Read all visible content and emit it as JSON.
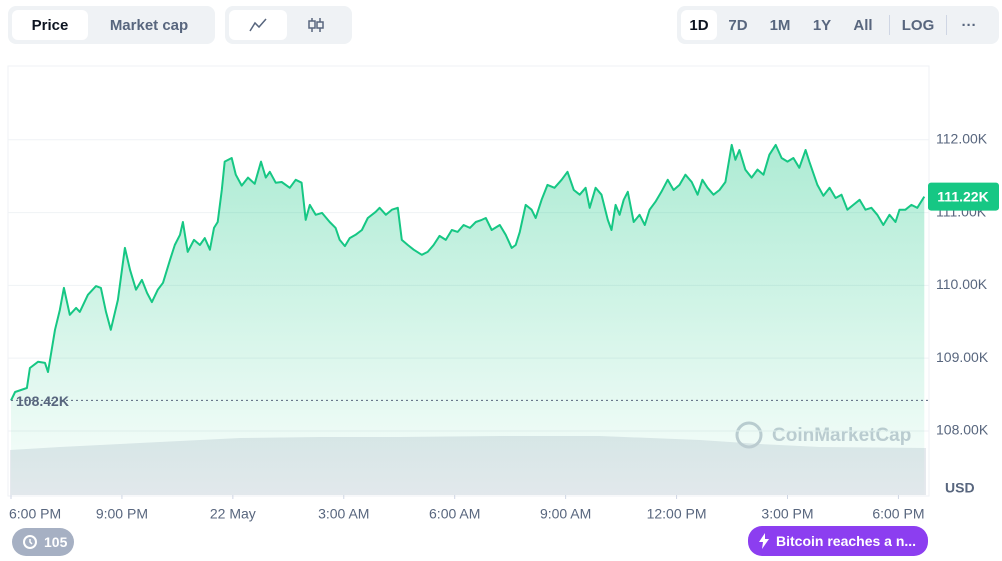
{
  "toolbar": {
    "tabs": [
      "Price",
      "Market cap"
    ],
    "ranges": [
      "1D",
      "7D",
      "1M",
      "1Y",
      "All"
    ],
    "log": "LOG",
    "more": "···"
  },
  "footer": {
    "badge": "105",
    "news": "Bitcoin reaches a n..."
  },
  "watermark": "CoinMarketCap",
  "chart_data": {
    "type": "line",
    "color": "#16c784",
    "grid": true,
    "y_unit": "USD",
    "x": [
      0,
      0.11,
      0.43,
      0.51,
      0.73,
      0.92,
      1.0,
      1.19,
      1.32,
      1.43,
      1.59,
      1.76,
      1.86,
      2.08,
      2.3,
      2.43,
      2.57,
      2.7,
      2.89,
      3.08,
      3.22,
      3.38,
      3.54,
      3.68,
      3.81,
      3.97,
      4.11,
      4.3,
      4.43,
      4.57,
      4.65,
      4.78,
      4.95,
      5.11,
      5.24,
      5.38,
      5.49,
      5.59,
      5.7,
      5.78,
      5.97,
      6.08,
      6.24,
      6.41,
      6.59,
      6.76,
      6.89,
      7.0,
      7.16,
      7.32,
      7.54,
      7.7,
      7.86,
      7.97,
      8.08,
      8.24,
      8.41,
      8.62,
      8.78,
      8.89,
      9.03,
      9.16,
      9.32,
      9.49,
      9.65,
      9.86,
      9.97,
      10.14,
      10.3,
      10.46,
      10.57,
      10.73,
      10.89,
      11.11,
      11.27,
      11.43,
      11.59,
      11.76,
      11.92,
      12.08,
      12.24,
      12.41,
      12.57,
      12.73,
      12.84,
      13.0,
      13.22,
      13.38,
      13.54,
      13.65,
      13.76,
      13.92,
      14.08,
      14.19,
      14.35,
      14.51,
      14.7,
      14.89,
      15.05,
      15.22,
      15.38,
      15.54,
      15.65,
      15.81,
      15.97,
      16.14,
      16.24,
      16.35,
      16.46,
      16.57,
      16.68,
      16.84,
      17.0,
      17.14,
      17.27,
      17.43,
      17.59,
      17.76,
      17.92,
      18.08,
      18.24,
      18.41,
      18.57,
      18.7,
      18.84,
      19.0,
      19.16,
      19.32,
      19.49,
      19.59,
      19.7,
      19.86,
      20.03,
      20.19,
      20.35,
      20.51,
      20.68,
      20.84,
      21.0,
      21.16,
      21.32,
      21.49,
      21.59,
      21.81,
      21.97,
      22.14,
      22.3,
      22.46,
      22.62,
      22.78,
      22.95,
      23.11,
      23.27,
      23.43,
      23.59,
      23.76,
      23.92,
      24.03,
      24.19,
      24.35,
      24.51,
      24.7
    ],
    "values": [
      108420,
      108535,
      108590,
      108865,
      108950,
      108935,
      108810,
      109390,
      109660,
      109965,
      109595,
      109690,
      109635,
      109870,
      109990,
      109965,
      109635,
      109390,
      109800,
      110515,
      110210,
      109940,
      110075,
      109895,
      109770,
      109940,
      110035,
      110350,
      110555,
      110695,
      110870,
      110460,
      110625,
      110555,
      110650,
      110490,
      110790,
      110870,
      111310,
      111700,
      111750,
      111520,
      111370,
      111480,
      111395,
      111700,
      111480,
      111560,
      111410,
      111420,
      111340,
      111450,
      111410,
      110900,
      111105,
      110970,
      110995,
      110870,
      110790,
      110625,
      110540,
      110650,
      110695,
      110760,
      110925,
      111010,
      111065,
      110970,
      111040,
      111065,
      110625,
      110555,
      110490,
      110420,
      110460,
      110555,
      110680,
      110625,
      110760,
      110735,
      110830,
      110790,
      110870,
      110900,
      110925,
      110760,
      110830,
      110695,
      110515,
      110555,
      110735,
      111105,
      111040,
      110925,
      111175,
      111380,
      111340,
      111450,
      111560,
      111310,
      111245,
      111340,
      111065,
      111340,
      111245,
      110900,
      110760,
      111105,
      110970,
      111175,
      111285,
      110870,
      110970,
      110830,
      111040,
      111150,
      111285,
      111450,
      111310,
      111380,
      111520,
      111420,
      111245,
      111450,
      111340,
      111245,
      111310,
      111420,
      111930,
      111725,
      111860,
      111590,
      111480,
      111590,
      111520,
      111795,
      111930,
      111750,
      111700,
      111750,
      111615,
      111860,
      111700,
      111380,
      111230,
      111340,
      111200,
      111245,
      111040,
      111105,
      111175,
      111040,
      111065,
      110970,
      110830,
      110970,
      110870,
      111040,
      111040,
      111105,
      111065,
      111220
    ],
    "xlim": [
      0,
      24.8
    ],
    "xticks": [
      {
        "value": 0,
        "label": "6:00 PM"
      },
      {
        "value": 3,
        "label": "9:00 PM"
      },
      {
        "value": 6,
        "label": "22 May"
      },
      {
        "value": 9,
        "label": "3:00 AM"
      },
      {
        "value": 12,
        "label": "6:00 AM"
      },
      {
        "value": 15,
        "label": "9:00 AM"
      },
      {
        "value": 18,
        "label": "12:00 PM"
      },
      {
        "value": 21,
        "label": "3:00 PM"
      },
      {
        "value": 24,
        "label": "6:00 PM"
      }
    ],
    "ylim": [
      107120,
      113000
    ],
    "yticks": [
      {
        "value": 108000,
        "label": "108.00K"
      },
      {
        "value": 109000,
        "label": "109.00K"
      },
      {
        "value": 110000,
        "label": "110.00K"
      },
      {
        "value": 111000,
        "label": "111.00K"
      },
      {
        "value": 112000,
        "label": "112.00K"
      }
    ],
    "reference": {
      "value": 108420,
      "label": "108.42K"
    },
    "last_price": {
      "value": 111220,
      "label": "111.22K"
    }
  }
}
